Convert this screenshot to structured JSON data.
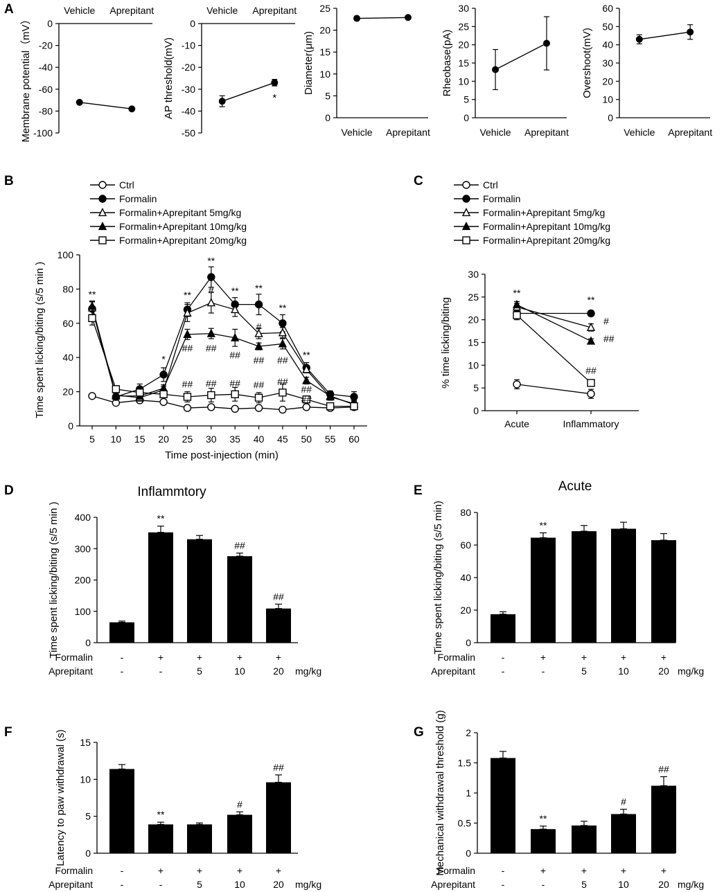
{
  "figure": {
    "panel_letters": [
      "A",
      "B",
      "C",
      "D",
      "E",
      "F",
      "G"
    ]
  },
  "chart_data": [
    {
      "id": "A1",
      "panel": "A",
      "type": "line",
      "categories": [
        "Vehicle",
        "Aprepitant"
      ],
      "values": [
        -72,
        -78
      ],
      "errors": [
        0,
        0
      ],
      "ylabel": "Membrane potential（mV）",
      "ylim": [
        -100,
        0
      ],
      "yticks": [
        "0",
        "-20",
        "-40",
        "-60",
        "-80",
        "-100"
      ],
      "annotations": [
        "",
        ""
      ]
    },
    {
      "id": "A2",
      "panel": "A",
      "type": "line",
      "categories": [
        "Vehicle",
        "Aprepitant"
      ],
      "values": [
        -35.5,
        -27
      ],
      "errors": [
        2.5,
        1.5
      ],
      "ylabel": "AP threshold(mV)",
      "ylim": [
        -50,
        0
      ],
      "yticks": [
        "0",
        "-10",
        "-20",
        "-30",
        "-40",
        "-50"
      ],
      "annotations": [
        "",
        "*"
      ]
    },
    {
      "id": "A3",
      "panel": "A",
      "type": "line",
      "categories": [
        "Vehicle",
        "Aprepitant"
      ],
      "values": [
        22.7,
        22.9
      ],
      "errors": [
        0.4,
        0.4
      ],
      "ylabel": "Diameter(μm)",
      "ylim": [
        0,
        25
      ],
      "yticks": [
        "0",
        "5",
        "10",
        "15",
        "20",
        "25"
      ]
    },
    {
      "id": "A4",
      "panel": "A",
      "type": "line",
      "categories": [
        "Vehicle",
        "Aprepitant"
      ],
      "values": [
        13.2,
        20.4
      ],
      "errors": [
        5.5,
        7.3
      ],
      "ylabel": "Rheobase(pA)",
      "ylim": [
        0,
        30
      ],
      "yticks": [
        "0",
        "5",
        "10",
        "15",
        "20",
        "25",
        "30"
      ]
    },
    {
      "id": "A5",
      "panel": "A",
      "type": "line",
      "categories": [
        "Vehicle",
        "Aprepitant"
      ],
      "values": [
        43,
        47
      ],
      "errors": [
        2.5,
        4
      ],
      "ylabel": "Overshoot(mV)",
      "ylim": [
        0,
        60
      ],
      "yticks": [
        "0",
        "10",
        "20",
        "30",
        "40",
        "50",
        "60"
      ]
    },
    {
      "id": "B",
      "panel": "B",
      "type": "line",
      "x": [
        5,
        10,
        15,
        20,
        25,
        30,
        35,
        40,
        45,
        50,
        55,
        60
      ],
      "xticks": [
        "5",
        "10",
        "15",
        "20",
        "25",
        "30",
        "35",
        "40",
        "45",
        "50",
        "55",
        "60"
      ],
      "xlabel": "Time post-injection (min)",
      "ylabel": "Time spent licking/biting (s/5 min )",
      "ylim": [
        0,
        100
      ],
      "yticks": [
        "0",
        "20",
        "40",
        "60",
        "80",
        "100"
      ],
      "series": [
        {
          "name": "Ctrl",
          "marker": "circle-open",
          "values": [
            17.5,
            13.5,
            15,
            14,
            10.5,
            11,
            10,
            10.5,
            9.5,
            11,
            10.5,
            11
          ],
          "errors": [
            1,
            1,
            1,
            1,
            1,
            1,
            1,
            1,
            1,
            1,
            1,
            1
          ]
        },
        {
          "name": "Formalin",
          "marker": "circle-filled",
          "values": [
            68.5,
            17,
            21.5,
            30,
            68,
            87,
            71,
            71,
            60,
            34,
            18.5,
            17
          ],
          "errors": [
            4,
            2,
            3,
            4,
            4,
            6,
            4,
            6,
            5,
            3,
            2,
            3
          ]
        },
        {
          "name": "Formalin+Aprepitant 5mg/kg",
          "marker": "triangle-open",
          "values": [
            69,
            18,
            16.5,
            21,
            66,
            72,
            68,
            54,
            54.5,
            33,
            17,
            13
          ],
          "errors": [
            4,
            2,
            2,
            2,
            5,
            6,
            4,
            3,
            3,
            2,
            2,
            2
          ]
        },
        {
          "name": "Formalin+Aprepitant 10mg/kg",
          "marker": "triangle-filled",
          "values": [
            70,
            17.5,
            17.5,
            22,
            53.5,
            54,
            51.5,
            46.5,
            48,
            26.5,
            17.5,
            12.5
          ],
          "errors": [
            3,
            2,
            2,
            2,
            3,
            3,
            5,
            2,
            3,
            2,
            2,
            2
          ]
        },
        {
          "name": "Formalin+Aprepitant 20mg/kg",
          "marker": "square-open",
          "values": [
            63,
            21.5,
            19.5,
            18.5,
            17,
            18,
            18.5,
            16.5,
            19.5,
            15.5,
            11.5,
            11.5
          ],
          "errors": [
            4,
            2,
            2,
            2,
            3,
            4,
            4,
            3,
            5,
            2,
            2,
            2
          ]
        }
      ],
      "annotations": [
        {
          "x": 5,
          "y": 77,
          "text": "**"
        },
        {
          "x": 20,
          "y": 39,
          "text": "*"
        },
        {
          "x": 25,
          "y": 76.5,
          "text": "**"
        },
        {
          "x": 30,
          "y": 96.5,
          "text": "**"
        },
        {
          "x": 35,
          "y": 79,
          "text": "**"
        },
        {
          "x": 40,
          "y": 80.5,
          "text": "**"
        },
        {
          "x": 45,
          "y": 69,
          "text": "**"
        },
        {
          "x": 50,
          "y": 41.5,
          "text": "**"
        },
        {
          "x": 30,
          "y": 79.5,
          "text": "#"
        },
        {
          "x": 40,
          "y": 58,
          "text": "#"
        },
        {
          "x": 45,
          "y": 59.5,
          "text": "#"
        },
        {
          "x": 25,
          "y": 45.5,
          "text": "##"
        },
        {
          "x": 30,
          "y": 45.5,
          "text": "##"
        },
        {
          "x": 35,
          "y": 41.5,
          "text": "##"
        },
        {
          "x": 40,
          "y": 38.5,
          "text": "##"
        },
        {
          "x": 45,
          "y": 38.5,
          "text": "##"
        },
        {
          "x": 50,
          "y": 21.5,
          "text": "##"
        },
        {
          "x": 25,
          "y": 24.5,
          "text": "##"
        },
        {
          "x": 30,
          "y": 25,
          "text": "##"
        },
        {
          "x": 35,
          "y": 25,
          "text": "##"
        },
        {
          "x": 40,
          "y": 24,
          "text": "##"
        },
        {
          "x": 45,
          "y": 26,
          "text": "##"
        },
        {
          "x": 50,
          "y": 15.5,
          "text": "##"
        }
      ]
    },
    {
      "id": "C",
      "panel": "C",
      "type": "line",
      "categories": [
        "Acute",
        "Inflammatory"
      ],
      "ylabel": "% time licking/biting",
      "ylim": [
        0,
        30
      ],
      "yticks": [
        "0",
        "5",
        "10",
        "15",
        "20",
        "25",
        "30"
      ],
      "series": [
        {
          "name": "Ctrl",
          "marker": "circle-open",
          "values": [
            5.8,
            3.7
          ],
          "errors": [
            1,
            1
          ]
        },
        {
          "name": "Formalin",
          "marker": "circle-filled",
          "values": [
            21.4,
            21.4
          ],
          "errors": [
            0.5,
            0.6
          ]
        },
        {
          "name": "Formalin+Aprepitant 5mg/kg",
          "marker": "triangle-open",
          "values": [
            22.8,
            18.3
          ],
          "errors": [
            0.8,
            0.8
          ]
        },
        {
          "name": "Formalin+Aprepitant 10mg/kg",
          "marker": "triangle-filled",
          "values": [
            23.3,
            15.3
          ],
          "errors": [
            0.7,
            0.5
          ]
        },
        {
          "name": "Formalin+Aprepitant 20mg/kg",
          "marker": "square-open",
          "values": [
            21,
            6.1
          ],
          "errors": [
            1,
            0.6
          ]
        }
      ],
      "annotations": [
        {
          "cat": 0,
          "y": 25.9,
          "text": "**"
        },
        {
          "cat": 1,
          "y": 24.4,
          "text": "**"
        },
        {
          "cat": 1,
          "y": 19.7,
          "text": "#",
          "side": "right"
        },
        {
          "cat": 1,
          "y": 15.8,
          "text": "##",
          "side": "right"
        },
        {
          "cat": 1,
          "y": 8.8,
          "text": "##"
        }
      ]
    },
    {
      "id": "D",
      "panel": "D",
      "type": "bar",
      "title": "Inflammtory",
      "values": [
        65,
        352,
        330,
        276,
        109
      ],
      "errors": [
        4,
        20,
        12,
        10,
        14
      ],
      "ylabel": "Time spent licking/biting (s/5 min )",
      "ylim": [
        0,
        400
      ],
      "yticks": [
        "0",
        "100",
        "200",
        "300",
        "400"
      ],
      "annotations": [
        "",
        "**",
        "",
        "##",
        "##"
      ],
      "rows": [
        {
          "label": "Formalin",
          "cells": [
            "-",
            "+",
            "+",
            "+",
            "+"
          ]
        },
        {
          "label": "Aprepitant",
          "cells": [
            "-",
            "-",
            "5",
            "10",
            "20"
          ]
        }
      ],
      "unit": "mg/kg"
    },
    {
      "id": "E",
      "panel": "E",
      "type": "bar",
      "title": "Acute",
      "values": [
        17.5,
        64.5,
        68.5,
        70,
        63
      ],
      "errors": [
        1.5,
        3,
        3.5,
        4,
        4
      ],
      "ylabel": "Time spent licking/biting (s/5 min)",
      "ylim": [
        0,
        80
      ],
      "yticks": [
        "0",
        "20",
        "40",
        "60",
        "80"
      ],
      "annotations": [
        "",
        "**",
        "",
        "",
        ""
      ],
      "rows": [
        {
          "label": "Formalin",
          "cells": [
            "-",
            "+",
            "+",
            "+",
            "+"
          ]
        },
        {
          "label": "Aprepitant",
          "cells": [
            "-",
            "-",
            "5",
            "10",
            "20"
          ]
        }
      ],
      "unit": "mg/kg"
    },
    {
      "id": "F",
      "panel": "F",
      "type": "bar",
      "values": [
        11.4,
        3.9,
        3.9,
        5.2,
        9.6
      ],
      "errors": [
        0.6,
        0.3,
        0.2,
        0.4,
        1
      ],
      "ylabel": "Latency to paw withdrawal (s)",
      "ylim": [
        0,
        15
      ],
      "yticks": [
        "0",
        "5",
        "10",
        "15"
      ],
      "annotations": [
        "",
        "**",
        "",
        "#",
        "##"
      ],
      "rows": [
        {
          "label": "Formalin",
          "cells": [
            "-",
            "+",
            "+",
            "+",
            "+"
          ]
        },
        {
          "label": "Aprepitant",
          "cells": [
            "-",
            "-",
            "5",
            "10",
            "20"
          ]
        }
      ],
      "unit": "mg/kg"
    },
    {
      "id": "G",
      "panel": "G",
      "type": "bar",
      "values": [
        1.58,
        0.4,
        0.46,
        0.65,
        1.12
      ],
      "errors": [
        0.11,
        0.05,
        0.07,
        0.08,
        0.15
      ],
      "ylabel": "Mechanical withdrawal threshold (g)",
      "ylim": [
        0,
        2
      ],
      "yticks": [
        "0",
        "0.5",
        "1",
        "1.5",
        "2"
      ],
      "annotations": [
        "",
        "**",
        "",
        "#",
        "##"
      ],
      "rows": [
        {
          "label": "Formalin",
          "cells": [
            "-",
            "+",
            "+",
            "+",
            "+"
          ]
        },
        {
          "label": "Aprepitant",
          "cells": [
            "-",
            "-",
            "5",
            "10",
            "20"
          ]
        }
      ],
      "unit": "mg/kg"
    }
  ]
}
